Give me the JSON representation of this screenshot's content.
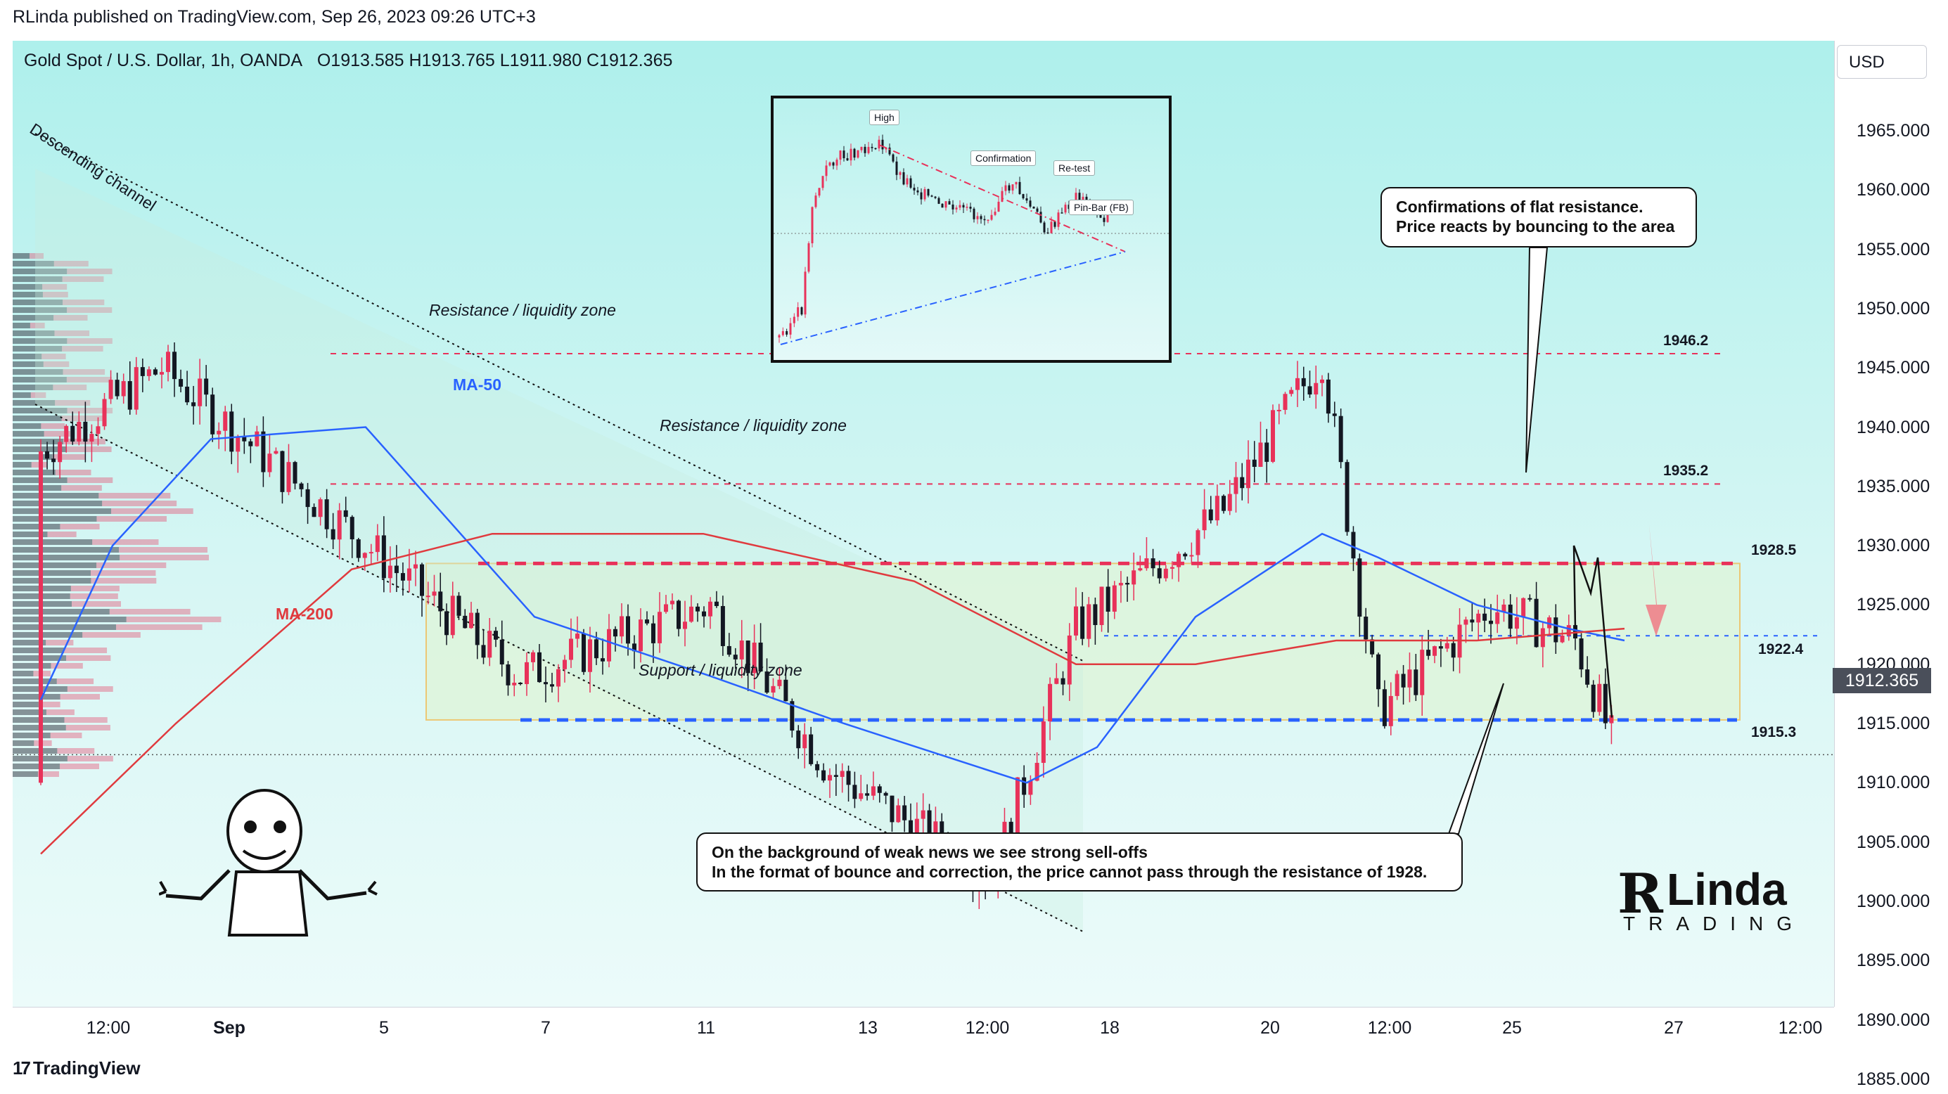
{
  "header": {
    "published": "RLinda published on TradingView.com, Sep 26, 2023 09:26 UTC+3",
    "symbol": "Gold Spot / U.S. Dollar, 1h, OANDA",
    "ohlc": "O1913.585   H1913.765   L1911.980   C1912.365",
    "currency": "USD"
  },
  "footer": {
    "brand": "TradingView"
  },
  "price_tag": "1912.365",
  "annotations": {
    "channel": "Descending channel",
    "resistance_upper": "Resistance / liquidity zone",
    "resistance_lower": "Resistance / liquidity zone",
    "support": "Support / liquidity zone",
    "ma50": "MA-50",
    "ma200": "MA-200",
    "callout_top_line1": "Confirmations of flat resistance.",
    "callout_top_line2": "Price reacts by bouncing to the area",
    "callout_bottom_line1": "On the background of weak news we see strong sell-offs",
    "callout_bottom_line2": "In the format of bounce and correction, the price cannot pass through the resistance of 1928."
  },
  "inset": {
    "high": "High",
    "confirmation": "Confirmation",
    "retest": "Re-test",
    "pinbar": "Pin-Bar (FB)"
  },
  "brand_logo": {
    "initial": "R",
    "name": "Linda",
    "sub": "TRADING"
  },
  "colors": {
    "bull": "#e8325a",
    "bear": "#131722",
    "ma50": "#2962ff",
    "ma200": "#e03a3e",
    "resistance": "#e8325a",
    "support": "#2962ff"
  },
  "chart_data": {
    "type": "candlestick",
    "ylim": [
      1881,
      1971
    ],
    "y_ticks": [
      "1965.000",
      "1960.000",
      "1955.000",
      "1950.000",
      "1945.000",
      "1940.000",
      "1935.000",
      "1930.000",
      "1925.000",
      "1920.000",
      "1915.000",
      "1910.000",
      "1905.000",
      "1900.000",
      "1895.000",
      "1890.000",
      "1885.000"
    ],
    "y_tick_values": [
      1965,
      1960,
      1955,
      1950,
      1945,
      1940,
      1935,
      1930,
      1925,
      1920,
      1915,
      1910,
      1905,
      1900,
      1895,
      1890,
      1885
    ],
    "x_ticks": [
      "12:00",
      "Sep",
      "5",
      "7",
      "11",
      "13",
      "12:00",
      "18",
      "20",
      "12:00",
      "25",
      "27",
      "12:00"
    ],
    "levels": [
      {
        "label": "1946.2",
        "value": 1946.2,
        "style": "dashed-red-thin"
      },
      {
        "label": "1935.2",
        "value": 1935.2,
        "style": "dashed-red-thin"
      },
      {
        "label": "1928.5",
        "value": 1928.5,
        "style": "dashed-red-thick"
      },
      {
        "label": "1922.4",
        "value": 1922.4,
        "style": "dashed-blue-thin"
      },
      {
        "label": "1915.3",
        "value": 1915.3,
        "style": "dashed-blue-thick"
      }
    ],
    "last_price": 1912.365,
    "key_closes": [
      {
        "t": "Aug 30",
        "v": 1938
      },
      {
        "t": "Sep 1",
        "v": 1945
      },
      {
        "t": "Sep 5",
        "v": 1926
      },
      {
        "t": "Sep 7",
        "v": 1919
      },
      {
        "t": "Sep 11",
        "v": 1925
      },
      {
        "t": "Sep 13",
        "v": 1911
      },
      {
        "t": "Sep 14",
        "v": 1902
      },
      {
        "t": "Sep 15",
        "v": 1923
      },
      {
        "t": "Sep 19",
        "v": 1933
      },
      {
        "t": "Sep 20",
        "v": 1946
      },
      {
        "t": "Sep 21",
        "v": 1916
      },
      {
        "t": "Sep 22",
        "v": 1925
      },
      {
        "t": "Sep 25",
        "v": 1922
      },
      {
        "t": "Sep 26",
        "v": 1912.365
      }
    ]
  }
}
